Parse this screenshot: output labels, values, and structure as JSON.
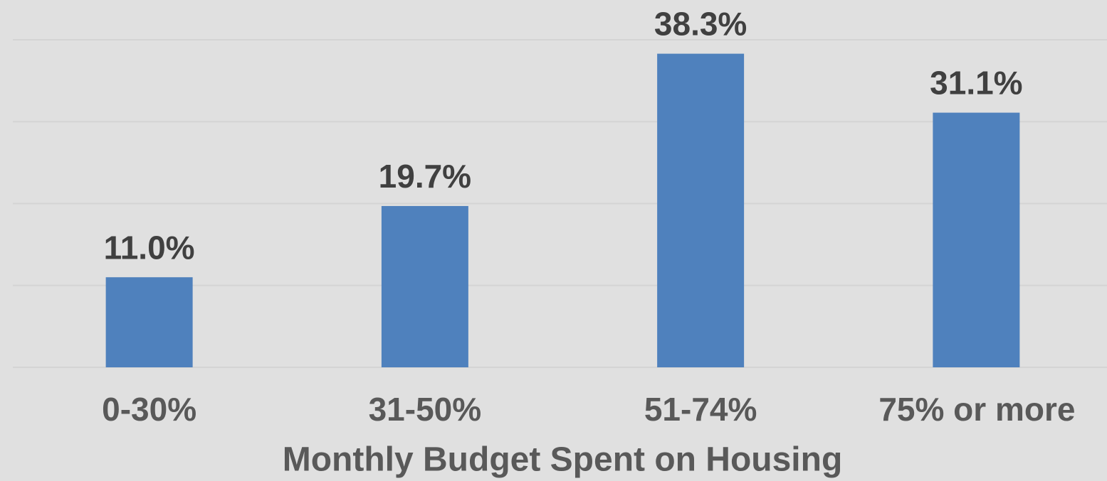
{
  "chart_data": {
    "type": "bar",
    "x_label": "Monthly Budget Spent on Housing",
    "categories": [
      "0-30%",
      "31-50%",
      "51-74%",
      "75% or more"
    ],
    "values": [
      11.0,
      19.7,
      38.3,
      31.1
    ],
    "value_labels": [
      "11.0%",
      "19.7%",
      "38.3%",
      "31.1%"
    ],
    "color": "#4f81bd",
    "ylim": [
      0,
      40
    ],
    "yticks": [
      0,
      10,
      20,
      30,
      40
    ],
    "grid": true
  }
}
